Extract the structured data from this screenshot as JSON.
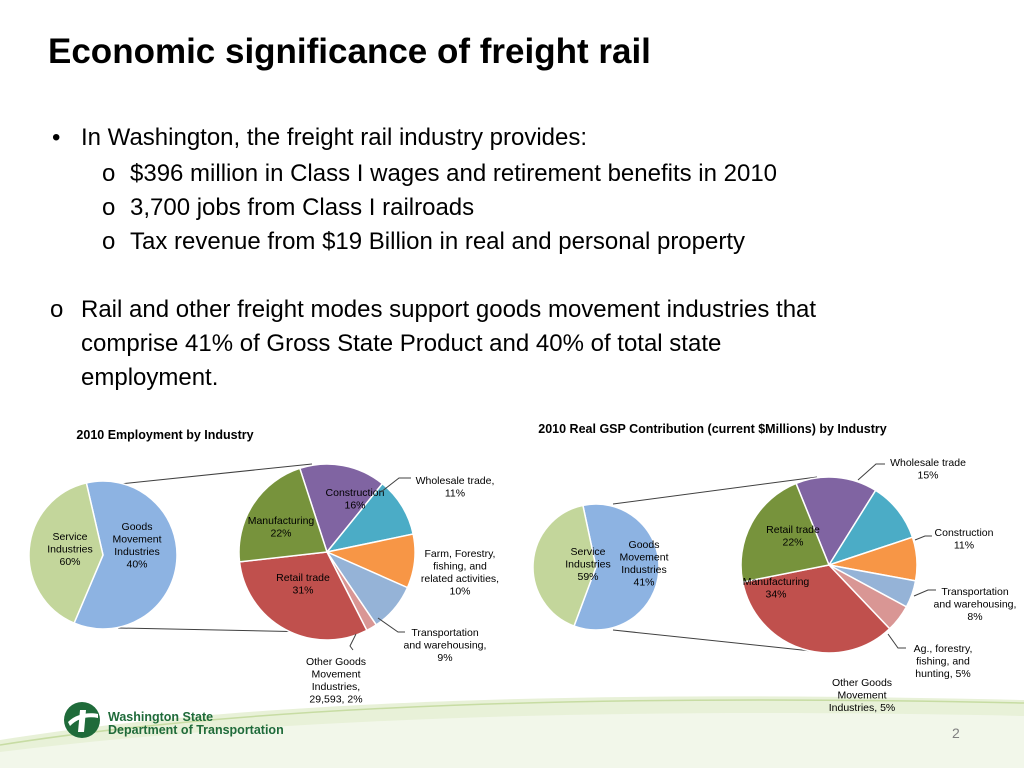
{
  "slide": {
    "title": "Economic significance of freight rail",
    "bullet_main": "In Washington, the freight rail industry provides:",
    "sub_bullets": [
      "$396 million in Class I wages and retirement benefits in 2010",
      "3,700 jobs from Class I railroads",
      "Tax revenue from $19 Billion in real and personal property"
    ],
    "bullet_marker": "•",
    "sub_marker": "o",
    "bullet2_lines": [
      "Rail and other freight modes support goods movement industries that",
      "comprise 41% of Gross State Product and 40% of total state",
      "employment."
    ],
    "footer": {
      "org_line1": "Washington State",
      "org_line2": "Department of Transportation",
      "page_number": "2"
    }
  },
  "chart_data": [
    {
      "type": "pie",
      "title": "2010 Employment by Industry",
      "main_pie": {
        "slices": [
          {
            "label_lines": [
              "Service",
              "Industries",
              "60%"
            ],
            "value": 60,
            "color": "#8db3e2"
          },
          {
            "label_lines": [
              "Goods",
              "Movement",
              "Industries",
              "40%"
            ],
            "value": 40,
            "color": "#c3d69b"
          }
        ]
      },
      "breakdown_pie": {
        "slices": [
          {
            "label_lines": [
              "Construction",
              "16%"
            ],
            "value": 16,
            "color": "#8064a2"
          },
          {
            "label_lines": [
              "Wholesale trade,",
              "11%"
            ],
            "value": 11,
            "color": "#4bacc6"
          },
          {
            "label_lines": [
              "Farm, Forestry,",
              "fishing, and",
              "related activities,",
              "10%"
            ],
            "value": 10,
            "color": "#f79646"
          },
          {
            "label_lines": [
              "Transportation",
              "and warehousing,",
              "9%"
            ],
            "value": 9,
            "color": "#95b3d7"
          },
          {
            "label_lines": [
              "Other Goods",
              "Movement",
              "Industries,",
              "29,593, 2%"
            ],
            "value": 2,
            "color": "#d99694"
          },
          {
            "label_lines": [
              "Retail trade",
              "31%"
            ],
            "value": 31,
            "color": "#c0504d"
          },
          {
            "label_lines": [
              "Manufacturing",
              "22%"
            ],
            "value": 22,
            "color": "#77933c"
          }
        ]
      }
    },
    {
      "type": "pie",
      "title": "2010 Real GSP Contribution (current $Millions) by Industry",
      "main_pie": {
        "slices": [
          {
            "label_lines": [
              "Service",
              "Industries",
              "59%"
            ],
            "value": 59,
            "color": "#8db3e2"
          },
          {
            "label_lines": [
              "Goods",
              "Movement",
              "Industries",
              "41%"
            ],
            "value": 41,
            "color": "#c3d69b"
          }
        ]
      },
      "breakdown_pie": {
        "slices": [
          {
            "label_lines": [
              "Wholesale trade",
              "15%"
            ],
            "value": 15,
            "color": "#8064a2"
          },
          {
            "label_lines": [
              "Construction",
              "11%"
            ],
            "value": 11,
            "color": "#4bacc6"
          },
          {
            "label_lines": [
              "Transportation",
              "and warehousing,",
              "8%"
            ],
            "value": 8,
            "color": "#f79646"
          },
          {
            "label_lines": [
              "Ag., forestry,",
              "fishing, and",
              "hunting, 5%"
            ],
            "value": 5,
            "color": "#95b3d7"
          },
          {
            "label_lines": [
              "Other Goods",
              "Movement",
              "Industries, 5%"
            ],
            "value": 5,
            "color": "#d99694"
          },
          {
            "label_lines": [
              "Manufacturing",
              "34%"
            ],
            "value": 34,
            "color": "#c0504d"
          },
          {
            "label_lines": [
              "Retail trade",
              "22%"
            ],
            "value": 22,
            "color": "#77933c"
          }
        ]
      }
    }
  ]
}
